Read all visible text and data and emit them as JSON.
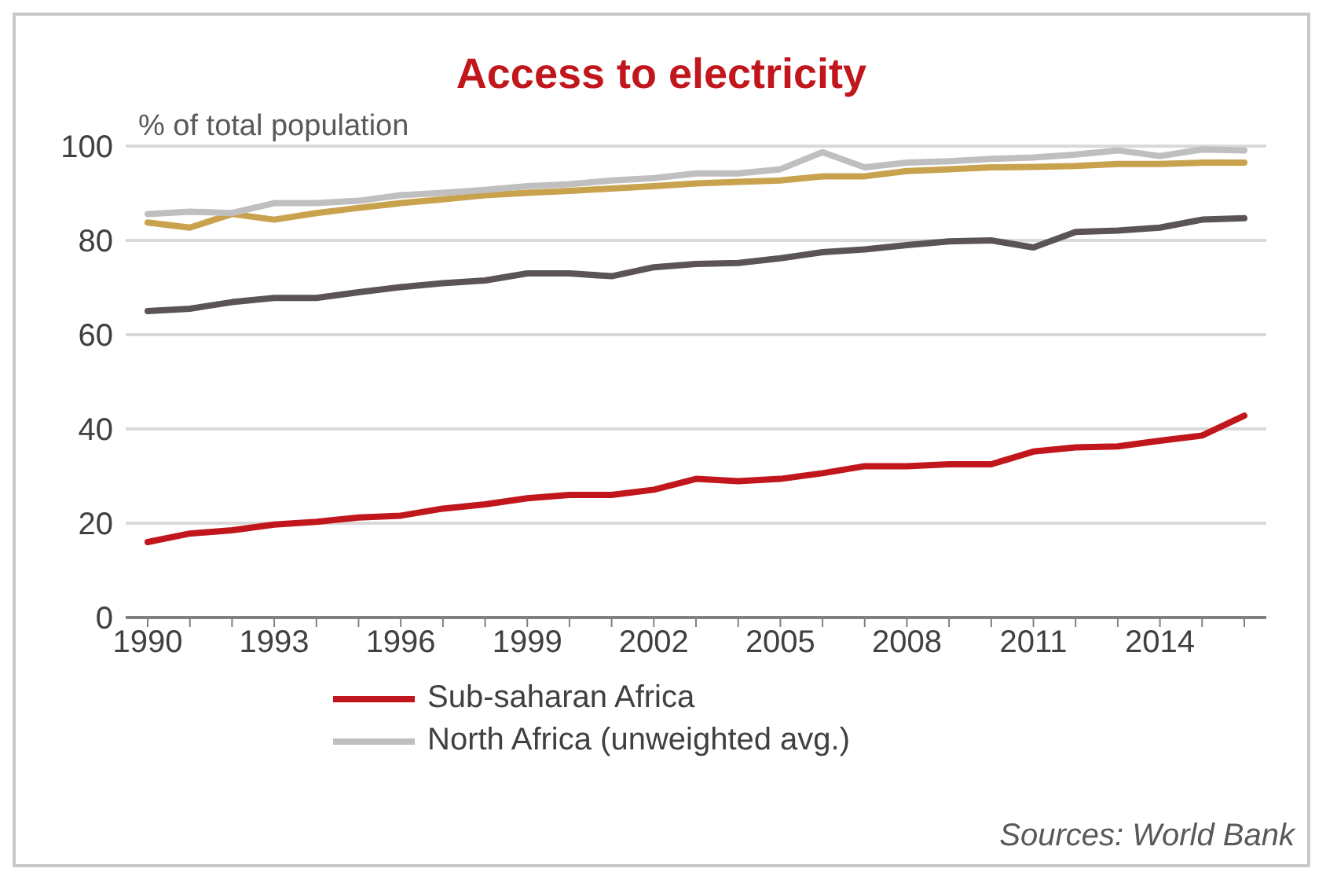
{
  "chart_data": {
    "type": "line",
    "title": "Access to electricity",
    "ylabel": "% of total population",
    "categories": [
      "1990",
      null,
      null,
      "1993",
      null,
      null,
      "1996",
      null,
      null,
      "1999",
      null,
      null,
      "2002",
      null,
      null,
      "2005",
      null,
      null,
      "2008",
      null,
      null,
      "2011",
      null,
      null,
      "2014",
      null,
      null
    ],
    "series": [
      {
        "color": "#5a5456",
        "values": [
          65,
          65.5,
          66.9,
          67.8,
          67.8,
          69,
          70.1,
          70.9,
          71.5,
          73,
          73,
          72.4,
          74.3,
          75,
          75.2,
          76.2,
          77.5,
          78.1,
          79,
          79.8,
          80,
          78.5,
          81.8,
          82.1,
          82.7,
          84.4,
          84.7
        ]
      },
      {
        "color": "#c9a24e",
        "values": [
          83.8,
          82.7,
          85.6,
          84.4,
          85.8,
          86.9,
          87.9,
          88.7,
          89.6,
          90.1,
          90.5,
          91,
          91.5,
          92.1,
          92.4,
          92.7,
          93.6,
          93.6,
          94.7,
          95.1,
          95.5,
          95.6,
          95.8,
          96.2,
          96.2,
          96.5,
          96.5
        ]
      },
      {
        "name": "Sub-saharan Africa",
        "color": "#c0161c",
        "values": [
          16,
          17.8,
          18.5,
          19.7,
          20.3,
          21.2,
          21.6,
          23.1,
          24,
          25.3,
          26,
          26,
          27.1,
          29.4,
          28.9,
          29.4,
          30.6,
          32.1,
          32.1,
          32.5,
          32.5,
          35.2,
          36.1,
          36.3,
          37.5,
          38.6,
          42.8
        ]
      },
      {
        "name": "North Africa (unweighted avg.)",
        "color": "#c0bfbf",
        "values": [
          85.6,
          86.1,
          85.8,
          87.9,
          87.9,
          88.4,
          89.6,
          90.1,
          90.7,
          91.5,
          91.9,
          92.7,
          93.2,
          94.2,
          94.2,
          95.1,
          98.7,
          95.5,
          96.5,
          96.8,
          97.3,
          97.6,
          98.2,
          99.1,
          97.9,
          99.3,
          99.1
        ]
      }
    ],
    "ylim": [
      0,
      100
    ],
    "yticks": [
      0,
      20,
      40,
      60,
      80,
      100
    ],
    "grid": "y",
    "legend": "bottom",
    "line_style": "solid",
    "annotations": [
      "Sources: World Bank"
    ]
  }
}
